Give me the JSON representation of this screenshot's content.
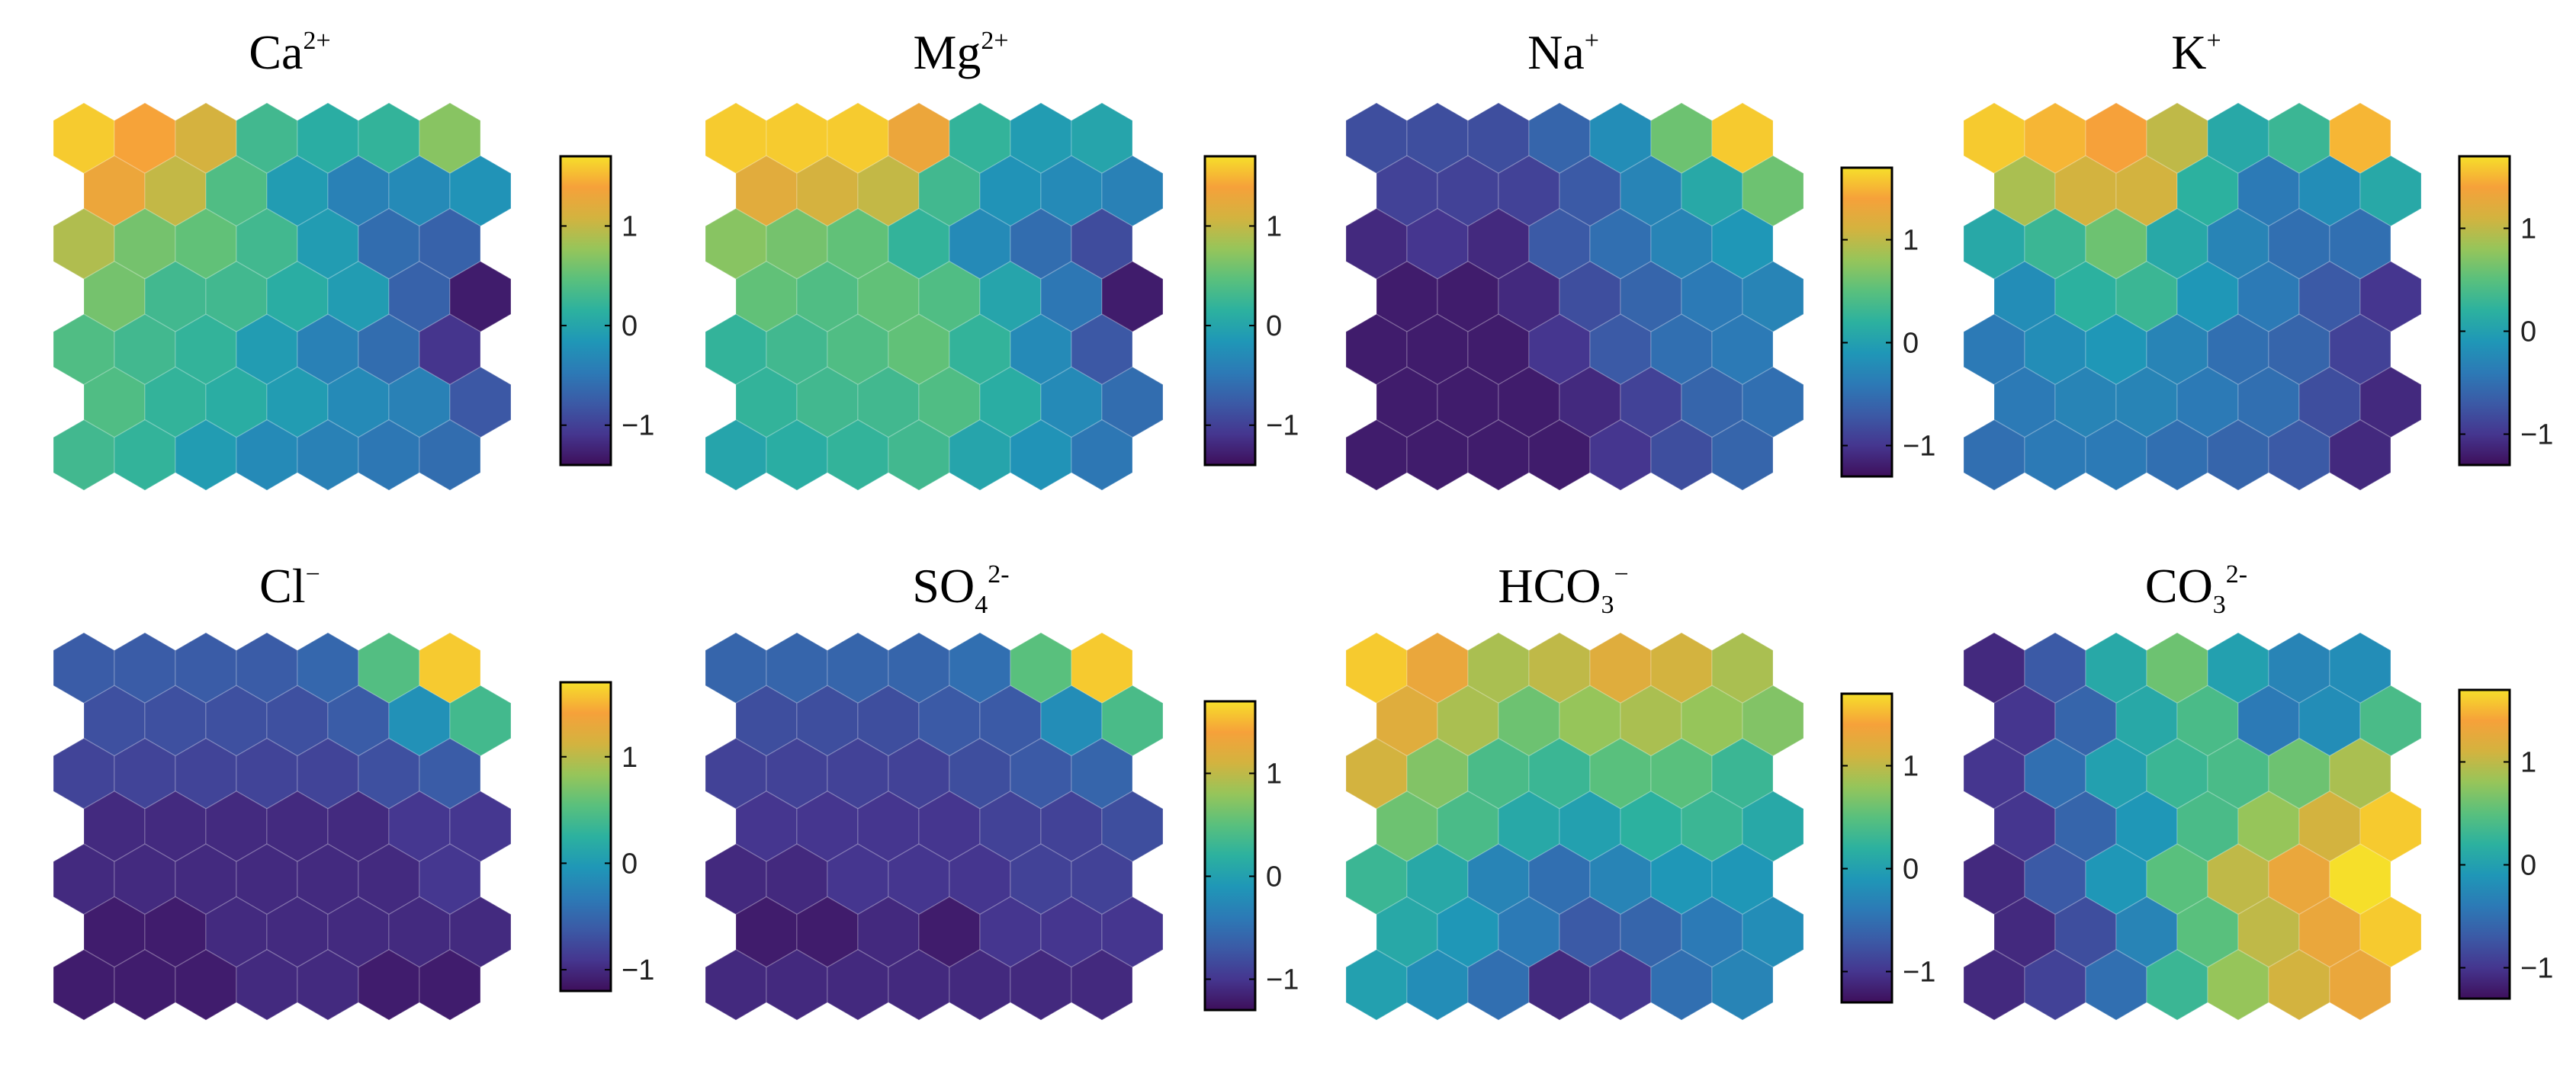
{
  "figure": {
    "colormap": [
      "#3e0f5b",
      "#45368f",
      "#3b5aa6",
      "#2c7ab6",
      "#1f97b7",
      "#2cb19f",
      "#59c07d",
      "#96c55a",
      "#d3b33f",
      "#f6a13a",
      "#f6df2a"
    ]
  },
  "chart_data": [
    {
      "type": "heatmap",
      "title": "Ca",
      "title_sup": "2+",
      "title_sub": "",
      "colorbar": {
        "range": [
          -1.4,
          1.7
        ],
        "ticks": [
          -1,
          0,
          1
        ],
        "tick_labels": [
          "−1",
          "0",
          "1"
        ]
      },
      "grid": [
        [
          1.6,
          1.4,
          1.1,
          0.3,
          0.1,
          0.2,
          0.7
        ],
        [
          1.3,
          1.0,
          0.4,
          -0.1,
          -0.4,
          -0.3,
          -0.2
        ],
        [
          0.9,
          0.6,
          0.5,
          0.3,
          -0.1,
          -0.6,
          -0.7
        ],
        [
          0.6,
          0.3,
          0.3,
          0.1,
          -0.1,
          -0.7,
          -1.3
        ],
        [
          0.4,
          0.3,
          0.2,
          -0.1,
          -0.4,
          -0.6,
          -1.1
        ],
        [
          0.4,
          0.2,
          0.1,
          -0.1,
          -0.3,
          -0.4,
          -0.8
        ],
        [
          0.3,
          0.2,
          -0.1,
          -0.3,
          -0.4,
          -0.5,
          -0.6
        ]
      ]
    },
    {
      "type": "heatmap",
      "title": "Mg",
      "title_sup": "2+",
      "title_sub": "",
      "colorbar": {
        "range": [
          -1.4,
          1.7
        ],
        "ticks": [
          -1,
          0,
          1
        ],
        "tick_labels": [
          "−1",
          "0",
          "1"
        ]
      },
      "grid": [
        [
          1.6,
          1.6,
          1.6,
          1.3,
          0.2,
          -0.1,
          0.0
        ],
        [
          1.2,
          1.1,
          1.0,
          0.3,
          -0.2,
          -0.3,
          -0.4
        ],
        [
          0.7,
          0.6,
          0.5,
          0.2,
          -0.3,
          -0.6,
          -0.9
        ],
        [
          0.5,
          0.4,
          0.5,
          0.4,
          0.0,
          -0.5,
          -1.3
        ],
        [
          0.2,
          0.3,
          0.4,
          0.5,
          0.2,
          -0.3,
          -0.8
        ],
        [
          0.2,
          0.3,
          0.3,
          0.4,
          0.1,
          -0.3,
          -0.6
        ],
        [
          0.0,
          0.1,
          0.2,
          0.3,
          0.0,
          -0.2,
          -0.5
        ]
      ]
    },
    {
      "type": "heatmap",
      "title": "Na",
      "title_sup": "+",
      "title_sub": "",
      "colorbar": {
        "range": [
          -1.3,
          1.7
        ],
        "ticks": [
          -1,
          0,
          1
        ],
        "tick_labels": [
          "−1",
          "0",
          "1"
        ]
      },
      "grid": [
        [
          -0.8,
          -0.8,
          -0.8,
          -0.6,
          -0.2,
          0.6,
          1.6
        ],
        [
          -0.9,
          -0.9,
          -0.9,
          -0.7,
          -0.3,
          0.1,
          0.6
        ],
        [
          -1.1,
          -1.0,
          -1.1,
          -0.7,
          -0.5,
          -0.3,
          -0.1
        ],
        [
          -1.2,
          -1.2,
          -1.1,
          -0.8,
          -0.6,
          -0.4,
          -0.3
        ],
        [
          -1.2,
          -1.2,
          -1.2,
          -1.0,
          -0.7,
          -0.5,
          -0.4
        ],
        [
          -1.2,
          -1.2,
          -1.2,
          -1.1,
          -0.9,
          -0.6,
          -0.5
        ],
        [
          -1.2,
          -1.2,
          -1.2,
          -1.2,
          -1.0,
          -0.8,
          -0.6
        ]
      ]
    },
    {
      "type": "heatmap",
      "title": "K",
      "title_sup": "+",
      "title_sub": "",
      "colorbar": {
        "range": [
          -1.3,
          1.7
        ],
        "ticks": [
          -1,
          0,
          1
        ],
        "tick_labels": [
          "−1",
          "0",
          "1"
        ]
      },
      "grid": [
        [
          1.6,
          1.5,
          1.4,
          1.0,
          0.1,
          0.3,
          1.5
        ],
        [
          0.9,
          1.1,
          1.1,
          0.2,
          -0.4,
          -0.2,
          0.1
        ],
        [
          0.1,
          0.3,
          0.6,
          0.1,
          -0.3,
          -0.5,
          -0.5
        ],
        [
          -0.2,
          0.2,
          0.3,
          -0.1,
          -0.4,
          -0.7,
          -1.0
        ],
        [
          -0.4,
          -0.2,
          -0.1,
          -0.3,
          -0.5,
          -0.6,
          -0.9
        ],
        [
          -0.4,
          -0.3,
          -0.3,
          -0.4,
          -0.5,
          -0.8,
          -1.1
        ],
        [
          -0.5,
          -0.4,
          -0.4,
          -0.5,
          -0.6,
          -0.7,
          -1.1
        ]
      ]
    },
    {
      "type": "heatmap",
      "title": "Cl",
      "title_sup": "−",
      "title_sub": "",
      "colorbar": {
        "range": [
          -1.2,
          1.7
        ],
        "ticks": [
          -1,
          0,
          1
        ],
        "tick_labels": [
          "−1",
          "0",
          "1"
        ]
      },
      "grid": [
        [
          -0.6,
          -0.6,
          -0.6,
          -0.6,
          -0.5,
          0.5,
          1.6
        ],
        [
          -0.7,
          -0.7,
          -0.7,
          -0.7,
          -0.6,
          -0.1,
          0.4
        ],
        [
          -0.8,
          -0.8,
          -0.8,
          -0.8,
          -0.8,
          -0.7,
          -0.6
        ],
        [
          -1.0,
          -1.0,
          -1.0,
          -1.0,
          -1.0,
          -0.9,
          -0.9
        ],
        [
          -1.0,
          -1.0,
          -1.0,
          -1.0,
          -1.0,
          -1.0,
          -0.9
        ],
        [
          -1.1,
          -1.1,
          -1.0,
          -1.0,
          -1.0,
          -1.0,
          -1.0
        ],
        [
          -1.1,
          -1.1,
          -1.1,
          -1.0,
          -1.0,
          -1.1,
          -1.1
        ]
      ]
    },
    {
      "type": "heatmap",
      "title": "SO",
      "title_sup": "2-",
      "title_sub": "4",
      "colorbar": {
        "range": [
          -1.3,
          1.7
        ],
        "ticks": [
          -1,
          0,
          1
        ],
        "tick_labels": [
          "−1",
          "0",
          "1"
        ]
      },
      "grid": [
        [
          -0.6,
          -0.6,
          -0.6,
          -0.6,
          -0.5,
          0.5,
          1.6
        ],
        [
          -0.8,
          -0.8,
          -0.8,
          -0.7,
          -0.7,
          -0.2,
          0.4
        ],
        [
          -0.9,
          -0.9,
          -0.9,
          -0.9,
          -0.8,
          -0.7,
          -0.6
        ],
        [
          -1.0,
          -1.0,
          -1.0,
          -1.0,
          -0.9,
          -0.9,
          -0.8
        ],
        [
          -1.1,
          -1.1,
          -1.0,
          -1.0,
          -1.0,
          -0.9,
          -0.9
        ],
        [
          -1.2,
          -1.2,
          -1.1,
          -1.2,
          -1.0,
          -1.0,
          -1.0
        ],
        [
          -1.1,
          -1.1,
          -1.1,
          -1.1,
          -1.1,
          -1.1,
          -1.1
        ]
      ]
    },
    {
      "type": "heatmap",
      "title": "HCO",
      "title_sup": "−",
      "title_sub": "3",
      "colorbar": {
        "range": [
          -1.3,
          1.7
        ],
        "ticks": [
          -1,
          0,
          1
        ],
        "tick_labels": [
          "−1",
          "0",
          "1"
        ]
      },
      "grid": [
        [
          1.6,
          1.3,
          0.9,
          1.0,
          1.2,
          1.1,
          0.9
        ],
        [
          1.2,
          0.9,
          0.6,
          0.8,
          0.9,
          0.8,
          0.7
        ],
        [
          1.1,
          0.7,
          0.4,
          0.3,
          0.5,
          0.5,
          0.3
        ],
        [
          0.6,
          0.4,
          0.1,
          0.0,
          0.2,
          0.3,
          0.1
        ],
        [
          0.3,
          0.1,
          -0.3,
          -0.5,
          -0.3,
          -0.1,
          -0.1
        ],
        [
          0.1,
          -0.1,
          -0.4,
          -0.7,
          -0.6,
          -0.4,
          -0.2
        ],
        [
          0.0,
          -0.2,
          -0.5,
          -1.1,
          -1.0,
          -0.5,
          -0.3
        ]
      ]
    },
    {
      "type": "heatmap",
      "title": "CO",
      "title_sup": "2-",
      "title_sub": "3",
      "colorbar": {
        "range": [
          -1.3,
          1.7
        ],
        "ticks": [
          -1,
          0,
          1
        ],
        "tick_labels": [
          "−1",
          "0",
          "1"
        ]
      },
      "grid": [
        [
          -1.1,
          -0.7,
          0.1,
          0.6,
          0.0,
          -0.3,
          -0.2
        ],
        [
          -1.0,
          -0.6,
          0.1,
          0.4,
          -0.4,
          -0.2,
          0.4
        ],
        [
          -1.0,
          -0.5,
          0.0,
          0.3,
          0.4,
          0.6,
          0.9
        ],
        [
          -1.0,
          -0.6,
          -0.1,
          0.4,
          0.8,
          1.1,
          1.6
        ],
        [
          -1.1,
          -0.7,
          -0.1,
          0.5,
          1.0,
          1.3,
          1.7
        ],
        [
          -1.1,
          -0.8,
          -0.3,
          0.5,
          1.0,
          1.3,
          1.6
        ],
        [
          -1.1,
          -0.9,
          -0.5,
          0.3,
          0.8,
          1.1,
          1.3
        ]
      ]
    }
  ]
}
